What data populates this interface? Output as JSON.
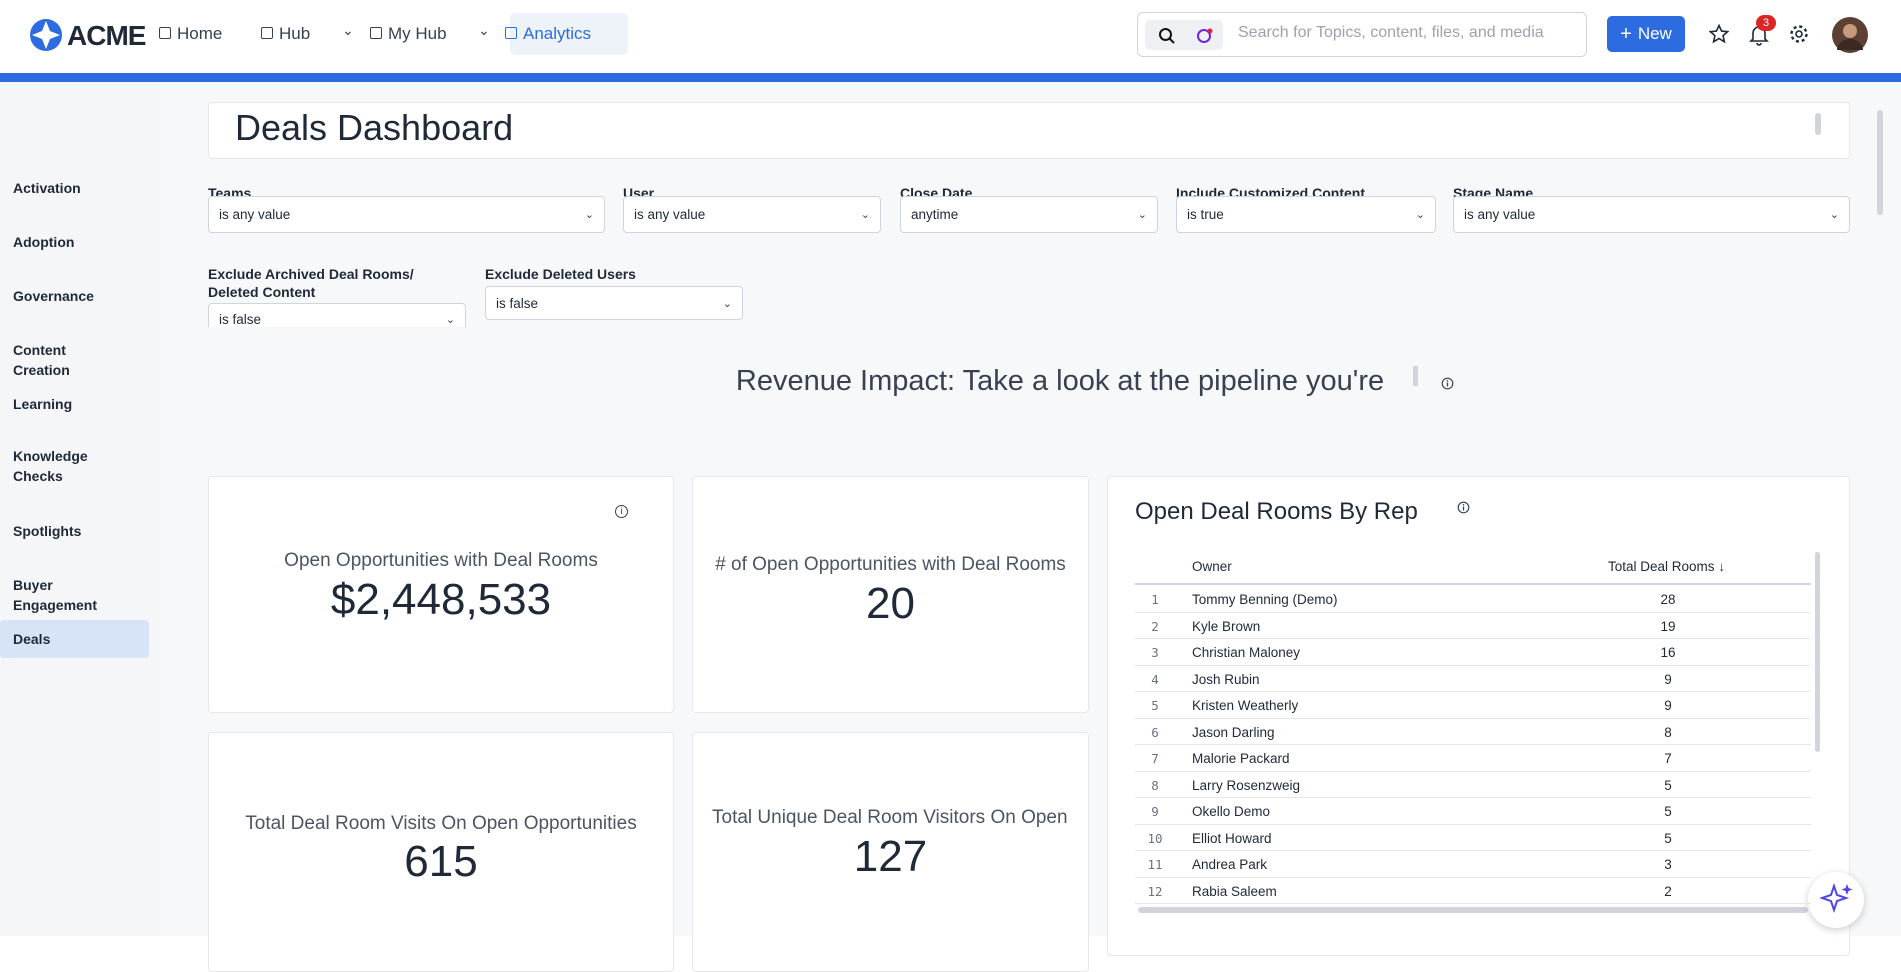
{
  "nav": {
    "brand": "ACME",
    "items": [
      "Home",
      "Hub",
      "My Hub",
      "Analytics"
    ],
    "search_placeholder": "Search for Topics, content, files, and media",
    "new_button": "New",
    "notification_count": "3"
  },
  "sidebar": {
    "items": [
      "Activation",
      "Adoption",
      "Governance",
      "Content Creation",
      "Learning",
      "Knowledge Checks",
      "Spotlights",
      "Buyer Engagement",
      "Deals"
    ],
    "active": "Deals"
  },
  "dashboard": {
    "title": "Deals Dashboard",
    "filters": [
      {
        "label": "Teams",
        "value": "is any value"
      },
      {
        "label": "User",
        "value": "is any value"
      },
      {
        "label": "Close Date",
        "value": "anytime"
      },
      {
        "label": "Include Customized Content",
        "value": "is true"
      },
      {
        "label": "Stage Name",
        "value": "is any value"
      },
      {
        "label": "Exclude Archived Deal Rooms/ Deleted Content",
        "value": "is false"
      },
      {
        "label": "Exclude Deleted Users",
        "value": "is false"
      }
    ],
    "section_title": "Revenue Impact: Take a look at the pipeline you're",
    "kpis": [
      {
        "label": "Open Opportunities with Deal Rooms",
        "value": "$2,448,533"
      },
      {
        "label": "# of Open Opportunities with Deal Rooms",
        "value": "20"
      },
      {
        "label": "Total Deal Room Visits On Open Opportunities",
        "value": "615"
      },
      {
        "label": "Total Unique Deal Room Visitors On Open C",
        "value": "127"
      }
    ],
    "table": {
      "title": "Open Deal Rooms By Rep",
      "columns": [
        "Owner",
        "Total Deal Rooms"
      ],
      "rows": [
        [
          1,
          "Tommy Benning (Demo)",
          28
        ],
        [
          2,
          "Kyle Brown",
          19
        ],
        [
          3,
          "Christian Maloney",
          16
        ],
        [
          4,
          "Josh Rubin",
          9
        ],
        [
          5,
          "Kristen Weatherly",
          9
        ],
        [
          6,
          "Jason Darling",
          8
        ],
        [
          7,
          "Malorie Packard",
          7
        ],
        [
          8,
          "Larry Rosenzweig",
          5
        ],
        [
          9,
          "Okello Demo",
          5
        ],
        [
          10,
          "Elliot Howard",
          5
        ],
        [
          11,
          "Andrea Park",
          3
        ],
        [
          12,
          "Rabia Saleem",
          2
        ]
      ]
    }
  }
}
